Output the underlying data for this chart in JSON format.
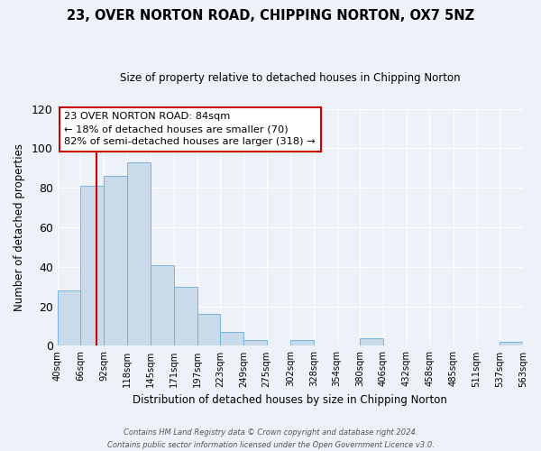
{
  "title": "23, OVER NORTON ROAD, CHIPPING NORTON, OX7 5NZ",
  "subtitle": "Size of property relative to detached houses in Chipping Norton",
  "xlabel": "Distribution of detached houses by size in Chipping Norton",
  "ylabel": "Number of detached properties",
  "bar_color": "#c9daea",
  "bar_edge_color": "#6aaed6",
  "bg_color": "#edf1f8",
  "grid_color": "#ffffff",
  "vline_x": 84,
  "vline_color": "#cc0000",
  "bin_edges": [
    40,
    66,
    92,
    118,
    145,
    171,
    197,
    223,
    249,
    275,
    302,
    328,
    354,
    380,
    406,
    432,
    458,
    485,
    511,
    537,
    563
  ],
  "bar_heights": [
    28,
    81,
    86,
    93,
    41,
    30,
    16,
    7,
    3,
    0,
    3,
    0,
    0,
    4,
    0,
    0,
    0,
    0,
    0,
    2
  ],
  "tick_labels": [
    "40sqm",
    "66sqm",
    "92sqm",
    "118sqm",
    "145sqm",
    "171sqm",
    "197sqm",
    "223sqm",
    "249sqm",
    "275sqm",
    "302sqm",
    "328sqm",
    "354sqm",
    "380sqm",
    "406sqm",
    "432sqm",
    "458sqm",
    "485sqm",
    "511sqm",
    "537sqm",
    "563sqm"
  ],
  "annotation_title": "23 OVER NORTON ROAD: 84sqm",
  "annotation_line1": "← 18% of detached houses are smaller (70)",
  "annotation_line2": "82% of semi-detached houses are larger (318) →",
  "annotation_box_color": "#ffffff",
  "annotation_box_edge": "#cc0000",
  "footer_line1": "Contains HM Land Registry data © Crown copyright and database right 2024.",
  "footer_line2": "Contains public sector information licensed under the Open Government Licence v3.0.",
  "ylim": [
    0,
    120
  ],
  "yticks": [
    0,
    20,
    40,
    60,
    80,
    100,
    120
  ],
  "title_fontsize": 10.5,
  "subtitle_fontsize": 8.5
}
